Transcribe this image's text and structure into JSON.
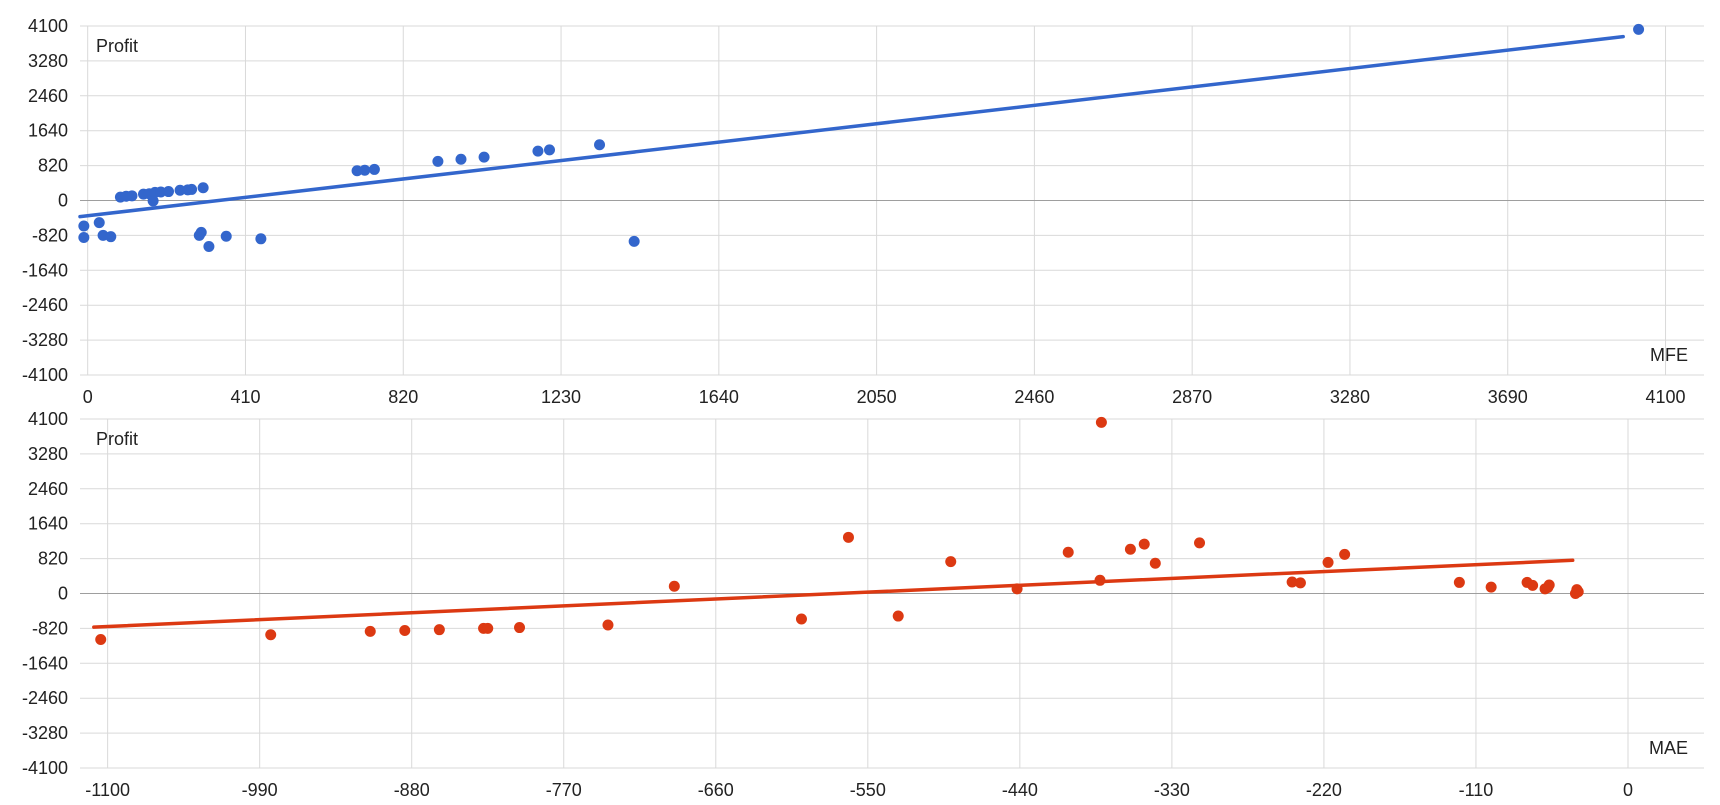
{
  "chart_data": [
    {
      "type": "scatter",
      "title": "",
      "xlabel": "MFE",
      "ylabel": "Profit",
      "xlim": [
        -20,
        4200
      ],
      "ylim": [
        -4100,
        4100
      ],
      "x_ticks": [
        0,
        410,
        820,
        1230,
        1640,
        2050,
        2460,
        2870,
        3280,
        3690,
        4100
      ],
      "y_ticks": [
        4100,
        3280,
        2460,
        1640,
        820,
        0,
        -820,
        -1640,
        -2460,
        -3280,
        -4100
      ],
      "grid": true,
      "color": "#3366cc",
      "trendline": {
        "type": "linear",
        "x": [
          -20,
          3990
        ],
        "y": [
          -380,
          3850
        ]
      },
      "series": [
        {
          "points": [
            [
              -10,
              -600
            ],
            [
              -10,
              -870
            ],
            [
              30,
              -520
            ],
            [
              40,
              -820
            ],
            [
              60,
              -850
            ],
            [
              85,
              80
            ],
            [
              100,
              100
            ],
            [
              115,
              110
            ],
            [
              145,
              150
            ],
            [
              160,
              160
            ],
            [
              170,
              -10
            ],
            [
              175,
              190
            ],
            [
              190,
              200
            ],
            [
              210,
              210
            ],
            [
              240,
              240
            ],
            [
              260,
              250
            ],
            [
              270,
              260
            ],
            [
              300,
              300
            ],
            [
              295,
              -750
            ],
            [
              290,
              -820
            ],
            [
              315,
              -1080
            ],
            [
              360,
              -840
            ],
            [
              450,
              -900
            ],
            [
              700,
              700
            ],
            [
              720,
              710
            ],
            [
              745,
              730
            ],
            [
              910,
              920
            ],
            [
              970,
              970
            ],
            [
              1030,
              1020
            ],
            [
              1170,
              1160
            ],
            [
              1200,
              1190
            ],
            [
              1330,
              1310
            ],
            [
              1420,
              -960
            ],
            [
              4030,
              4020
            ]
          ]
        }
      ]
    },
    {
      "type": "scatter",
      "title": "",
      "xlabel": "MAE",
      "ylabel": "Profit",
      "xlim": [
        -1120,
        55
      ],
      "ylim": [
        -4100,
        4100
      ],
      "x_ticks": [
        -1100,
        -990,
        -880,
        -770,
        -660,
        -550,
        -440,
        -330,
        -220,
        -110,
        0
      ],
      "y_ticks": [
        4100,
        3280,
        2460,
        1640,
        820,
        0,
        -820,
        -1640,
        -2460,
        -3280,
        -4100
      ],
      "grid": true,
      "color": "#dc3912",
      "trendline": {
        "type": "linear",
        "x": [
          -1110,
          -40
        ],
        "y": [
          -790,
          780
        ]
      },
      "series": [
        {
          "points": [
            [
              -1105,
              -1080
            ],
            [
              -982,
              -970
            ],
            [
              -910,
              -890
            ],
            [
              -885,
              -870
            ],
            [
              -860,
              -850
            ],
            [
              -828,
              -820
            ],
            [
              -825,
              -820
            ],
            [
              -802,
              -800
            ],
            [
              -738,
              -740
            ],
            [
              -690,
              170
            ],
            [
              -598,
              -600
            ],
            [
              -564,
              1320
            ],
            [
              -528,
              -530
            ],
            [
              -490,
              750
            ],
            [
              -442,
              110
            ],
            [
              -405,
              970
            ],
            [
              -382,
              310
            ],
            [
              -381,
              4020
            ],
            [
              -360,
              1040
            ],
            [
              -350,
              1160
            ],
            [
              -342,
              710
            ],
            [
              -310,
              1190
            ],
            [
              -243,
              270
            ],
            [
              -237,
              250
            ],
            [
              -217,
              730
            ],
            [
              -205,
              920
            ],
            [
              -122,
              260
            ],
            [
              -99,
              150
            ],
            [
              -73,
              260
            ],
            [
              -69,
              190
            ],
            [
              -60,
              110
            ],
            [
              -58,
              140
            ],
            [
              -57,
              200
            ],
            [
              -38,
              0
            ],
            [
              -37,
              90
            ],
            [
              -36,
              40
            ]
          ]
        }
      ]
    }
  ]
}
